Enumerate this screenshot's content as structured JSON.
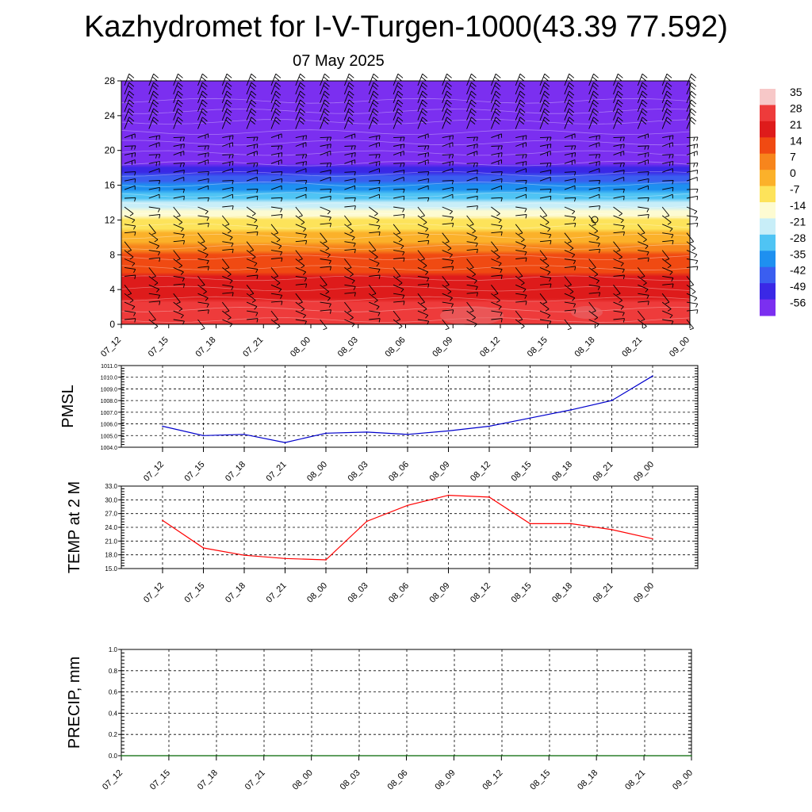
{
  "title": "Kazhydromet for I-V-Turgen-1000(43.39 77.592)",
  "subtitle": "07 May 2025",
  "chart_data": [
    {
      "type": "heatmap",
      "name": "upper-air cross section",
      "x_ticks": [
        "07_12",
        "07_15",
        "07_18",
        "07_21",
        "08_00",
        "08_03",
        "08_06",
        "08_09",
        "08_12",
        "08_15",
        "08_18",
        "08_21",
        "09_00"
      ],
      "y_ticks": [
        0,
        4,
        8,
        12,
        16,
        20,
        24,
        28
      ],
      "ylim": [
        0,
        28
      ],
      "colorbar": {
        "labels": [
          35,
          28,
          21,
          14,
          7,
          0,
          -7,
          -14,
          -21,
          -28,
          -35,
          -42,
          -49,
          -56
        ],
        "colors": [
          "#f7c8c8",
          "#ee3b3b",
          "#de1b1b",
          "#f04a12",
          "#f7851c",
          "#fbb12a",
          "#fde35a",
          "#fdfbd2",
          "#c8eef8",
          "#4fc4f4",
          "#1e90f0",
          "#3a5ef0",
          "#3a28e6",
          "#7b2ff0"
        ]
      },
      "temperature_profile": [
        {
          "height": 0,
          "value": 32
        },
        {
          "height": 4,
          "value": 26
        },
        {
          "height": 8,
          "value": 14
        },
        {
          "height": 12,
          "value": -7
        },
        {
          "height": 14,
          "value": -21
        },
        {
          "height": 16,
          "value": -35
        },
        {
          "height": 19,
          "value": -56
        },
        {
          "height": 22,
          "value": -56
        },
        {
          "height": 28,
          "value": -56
        }
      ],
      "grid": false
    },
    {
      "type": "line",
      "ylabel": "PMSL",
      "categories": [
        "07_12",
        "07_15",
        "07_18",
        "07_21",
        "08_00",
        "08_03",
        "08_06",
        "08_09",
        "08_12",
        "08_15",
        "08_18",
        "08_21",
        "09_00"
      ],
      "values": [
        1005.8,
        1005.0,
        1005.1,
        1004.4,
        1005.2,
        1005.3,
        1005.1,
        1005.4,
        1005.8,
        1006.5,
        1007.2,
        1008.0,
        1010.1
      ],
      "y_ticks": [
        "1004.0",
        "1005.0",
        "1006.0",
        "1007.0",
        "1008.0",
        "1009.0",
        "1010.0",
        "1011.0"
      ],
      "ylim": [
        1004,
        1011
      ],
      "color": "#0000cc",
      "grid": true
    },
    {
      "type": "line",
      "ylabel": "TEMP at 2 M",
      "categories": [
        "07_12",
        "07_15",
        "07_18",
        "07_21",
        "08_00",
        "08_03",
        "08_06",
        "08_09",
        "08_12",
        "08_15",
        "08_18",
        "08_21",
        "09_00"
      ],
      "values": [
        25.5,
        19.5,
        17.9,
        17.2,
        16.9,
        25.3,
        28.8,
        31.0,
        30.6,
        24.8,
        24.8,
        23.5,
        21.5
      ],
      "y_ticks": [
        "15.0",
        "18.0",
        "21.0",
        "24.0",
        "27.0",
        "30.0",
        "33.0"
      ],
      "ylim": [
        15,
        33
      ],
      "color": "#ff0000",
      "grid": true
    },
    {
      "type": "line",
      "ylabel": "PRECIP, mm",
      "categories": [
        "07_12",
        "07_15",
        "07_18",
        "07_21",
        "08_00",
        "08_03",
        "08_06",
        "08_09",
        "08_12",
        "08_15",
        "08_18",
        "08_21",
        "09_00"
      ],
      "values": [
        0,
        0,
        0,
        0,
        0,
        0,
        0,
        0,
        0,
        0,
        0,
        0,
        0
      ],
      "y_ticks": [
        "0.0",
        "0.2",
        "0.4",
        "0.6",
        "0.8",
        "1.0"
      ],
      "ylim": [
        0,
        1
      ],
      "color": "#006600",
      "grid": true
    }
  ]
}
